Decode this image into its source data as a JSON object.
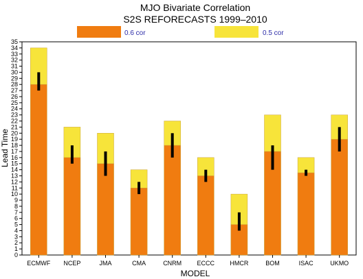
{
  "chart_data": {
    "type": "bar",
    "title": "MJO Bivariate Correlation",
    "subtitle": "S2S REFORECASTS 1999–2010",
    "xlabel": "MODEL",
    "ylabel": "Lead Time",
    "ylim": [
      0,
      35
    ],
    "yticks": [
      0,
      1,
      2,
      3,
      4,
      5,
      6,
      7,
      8,
      9,
      10,
      11,
      12,
      13,
      14,
      15,
      16,
      17,
      18,
      19,
      20,
      21,
      22,
      23,
      24,
      25,
      26,
      27,
      28,
      29,
      30,
      31,
      32,
      33,
      34,
      35
    ],
    "categories": [
      "ECMWF",
      "NCEP",
      "JMA",
      "CMA",
      "CNRM",
      "ECCC",
      "HMCR",
      "BOM",
      "ISAC",
      "UKMO"
    ],
    "series": [
      {
        "name": "0.6 cor",
        "color": "#f07c10",
        "values": [
          28,
          16,
          15,
          11,
          18,
          13,
          5,
          17,
          13.5,
          19
        ]
      },
      {
        "name": "0.5 cor",
        "color": "#f7e43a",
        "values": [
          34,
          21,
          20,
          14,
          22,
          16,
          10,
          23,
          16,
          23
        ]
      }
    ],
    "error_bars": {
      "color": "#000000",
      "ranges": [
        [
          27,
          30
        ],
        [
          15,
          18
        ],
        [
          13,
          17
        ],
        [
          10,
          12
        ],
        [
          16,
          20
        ],
        [
          12,
          14
        ],
        [
          4,
          7
        ],
        [
          14,
          18
        ],
        [
          13,
          14
        ],
        [
          17,
          21
        ]
      ]
    },
    "legend_position": "top",
    "grid": false
  }
}
